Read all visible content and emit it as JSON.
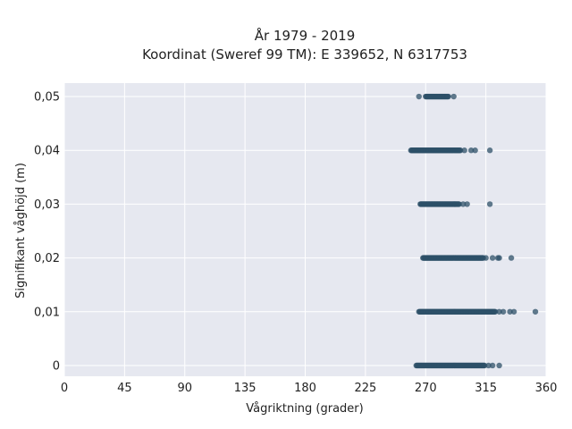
{
  "chart_data": {
    "type": "scatter",
    "title": "År 1979 - 2019",
    "subtitle": "Koordinat (Sweref 99 TM): E 339652, N 6317753",
    "xlabel": "Vågriktning (grader)",
    "ylabel": "Signifikant våghöjd (m)",
    "xlim": [
      0,
      360
    ],
    "ylim": [
      -0.002,
      0.0525
    ],
    "xticks": [
      0,
      45,
      90,
      135,
      180,
      225,
      270,
      315,
      360
    ],
    "xtick_labels": [
      "0",
      "45",
      "90",
      "135",
      "180",
      "225",
      "270",
      "315",
      "360"
    ],
    "yticks": [
      0,
      0.01,
      0.02,
      0.03,
      0.04,
      0.05
    ],
    "ytick_labels": [
      "0",
      "0,01",
      "0,02",
      "0,03",
      "0,04",
      "0,05"
    ],
    "grid": true,
    "point_color": "#2e5068",
    "background_color": "#e6e8f0",
    "bands": [
      {
        "y": 0.05,
        "dense_from": 270,
        "dense_to": 287,
        "outliers": [
          265,
          291
        ]
      },
      {
        "y": 0.04,
        "dense_from": 259,
        "dense_to": 296,
        "outliers": [
          299,
          304,
          307,
          318
        ]
      },
      {
        "y": 0.03,
        "dense_from": 266,
        "dense_to": 295,
        "outliers": [
          298,
          301,
          318
        ]
      },
      {
        "y": 0.02,
        "dense_from": 268,
        "dense_to": 313,
        "outliers": [
          315,
          320,
          324,
          325,
          334
        ]
      },
      {
        "y": 0.01,
        "dense_from": 265,
        "dense_to": 322,
        "outliers": [
          325,
          328,
          333,
          336,
          352
        ]
      },
      {
        "y": 0.0,
        "dense_from": 263,
        "dense_to": 314,
        "outliers": [
          317,
          320,
          325
        ]
      }
    ]
  }
}
